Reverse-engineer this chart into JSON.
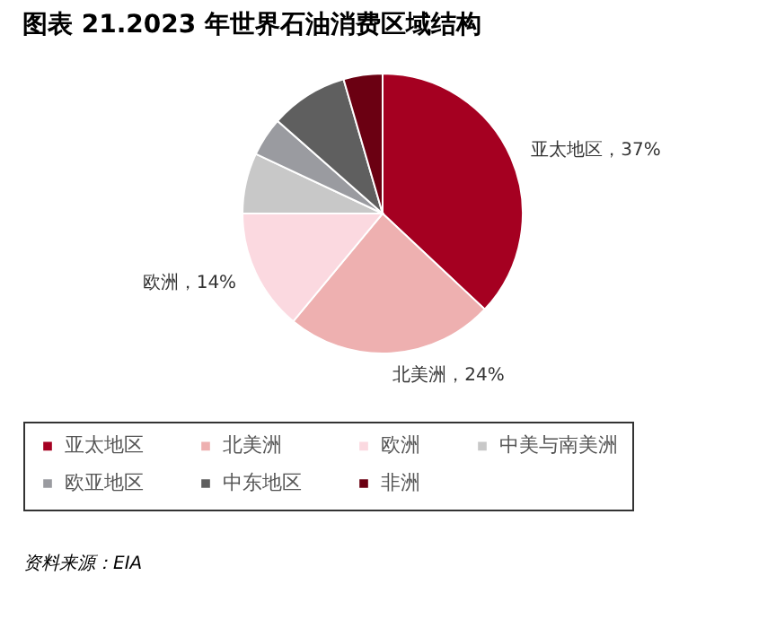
{
  "chart_data": {
    "type": "pie",
    "title": "图表 21.2023 年世界石油消费区域结构",
    "categories": [
      "亚太地区",
      "北美洲",
      "欧洲",
      "中美与南美洲",
      "欧亚地区",
      "中东地区",
      "非洲"
    ],
    "values": [
      37,
      24,
      14,
      7,
      4.5,
      9,
      4.5
    ],
    "colors": [
      "#a50021",
      "#eeb0b0",
      "#fbd9e0",
      "#c8c8c8",
      "#9a9ba0",
      "#5f5f5f",
      "#6b0012"
    ],
    "value_labels": [
      "亚太地区，37%",
      "北美洲，24%",
      "欧洲，14%",
      null,
      null,
      null,
      null
    ],
    "legend": "bottom",
    "annotations": [
      "资料来源：EIA"
    ]
  }
}
